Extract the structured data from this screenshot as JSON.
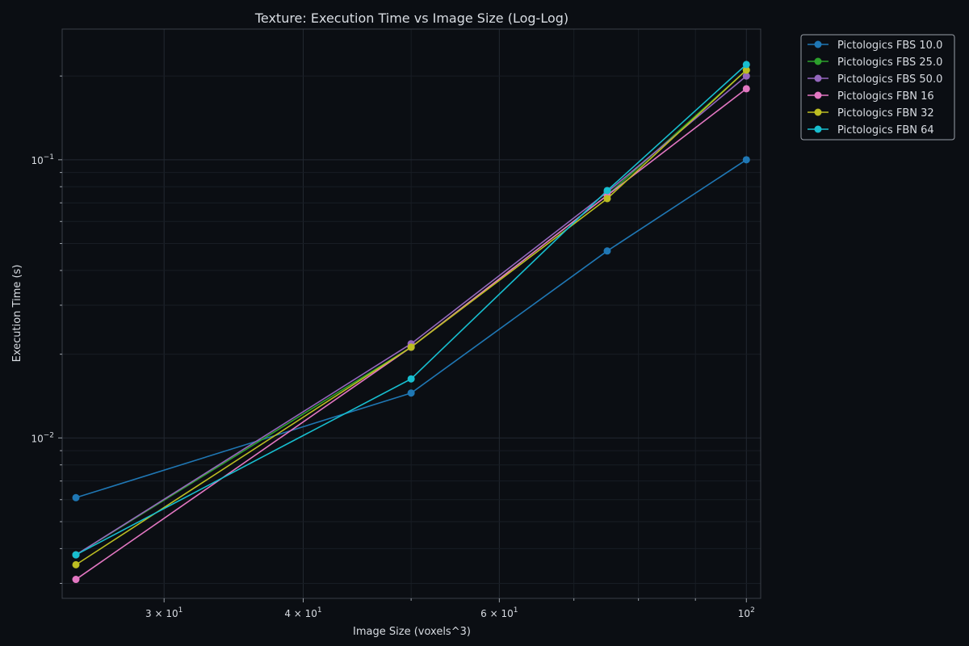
{
  "chart_data": {
    "type": "line",
    "title": "Texture: Execution Time vs Image Size (Log-Log)",
    "xlabel": "Image Size (voxels^3)",
    "ylabel": "Execution Time (s)",
    "xscale": "log",
    "yscale": "log",
    "xlim": [
      24.3,
      103
    ],
    "ylim": [
      0.00265,
      0.295
    ],
    "grid": true,
    "legend_position": "outside top-right",
    "x_ticks": [
      {
        "value": 30,
        "base": "3 × 10",
        "exp": "1"
      },
      {
        "value": 40,
        "base": "4 × 10",
        "exp": "1"
      },
      {
        "value": 60,
        "base": "6 × 10",
        "exp": "1"
      },
      {
        "value": 100,
        "base": "10",
        "exp": "2"
      }
    ],
    "y_ticks": [
      {
        "value": 0.01,
        "base": "10",
        "exp": "−2"
      },
      {
        "value": 0.1,
        "base": "10",
        "exp": "−1"
      }
    ],
    "x": [
      25,
      50,
      75,
      100
    ],
    "series": [
      {
        "name": "Pictologics FBS 10.0",
        "color": "#1f77b4",
        "values": [
          0.0061,
          0.0145,
          0.047,
          0.1
        ]
      },
      {
        "name": "Pictologics FBS 25.0",
        "color": "#2ca02c",
        "values": [
          0.0038,
          0.0212,
          0.0745,
          0.21
        ]
      },
      {
        "name": "Pictologics FBS 50.0",
        "color": "#9467bd",
        "values": [
          0.0038,
          0.0218,
          0.0765,
          0.2
        ]
      },
      {
        "name": "Pictologics FBN 16",
        "color": "#e377c2",
        "values": [
          0.0031,
          0.0212,
          0.0745,
          0.18
        ]
      },
      {
        "name": "Pictologics FBN 32",
        "color": "#bcbd22",
        "values": [
          0.0035,
          0.0212,
          0.0725,
          0.21
        ]
      },
      {
        "name": "Pictologics FBN 64",
        "color": "#17becf",
        "values": [
          0.0038,
          0.0163,
          0.0775,
          0.22
        ]
      }
    ]
  }
}
